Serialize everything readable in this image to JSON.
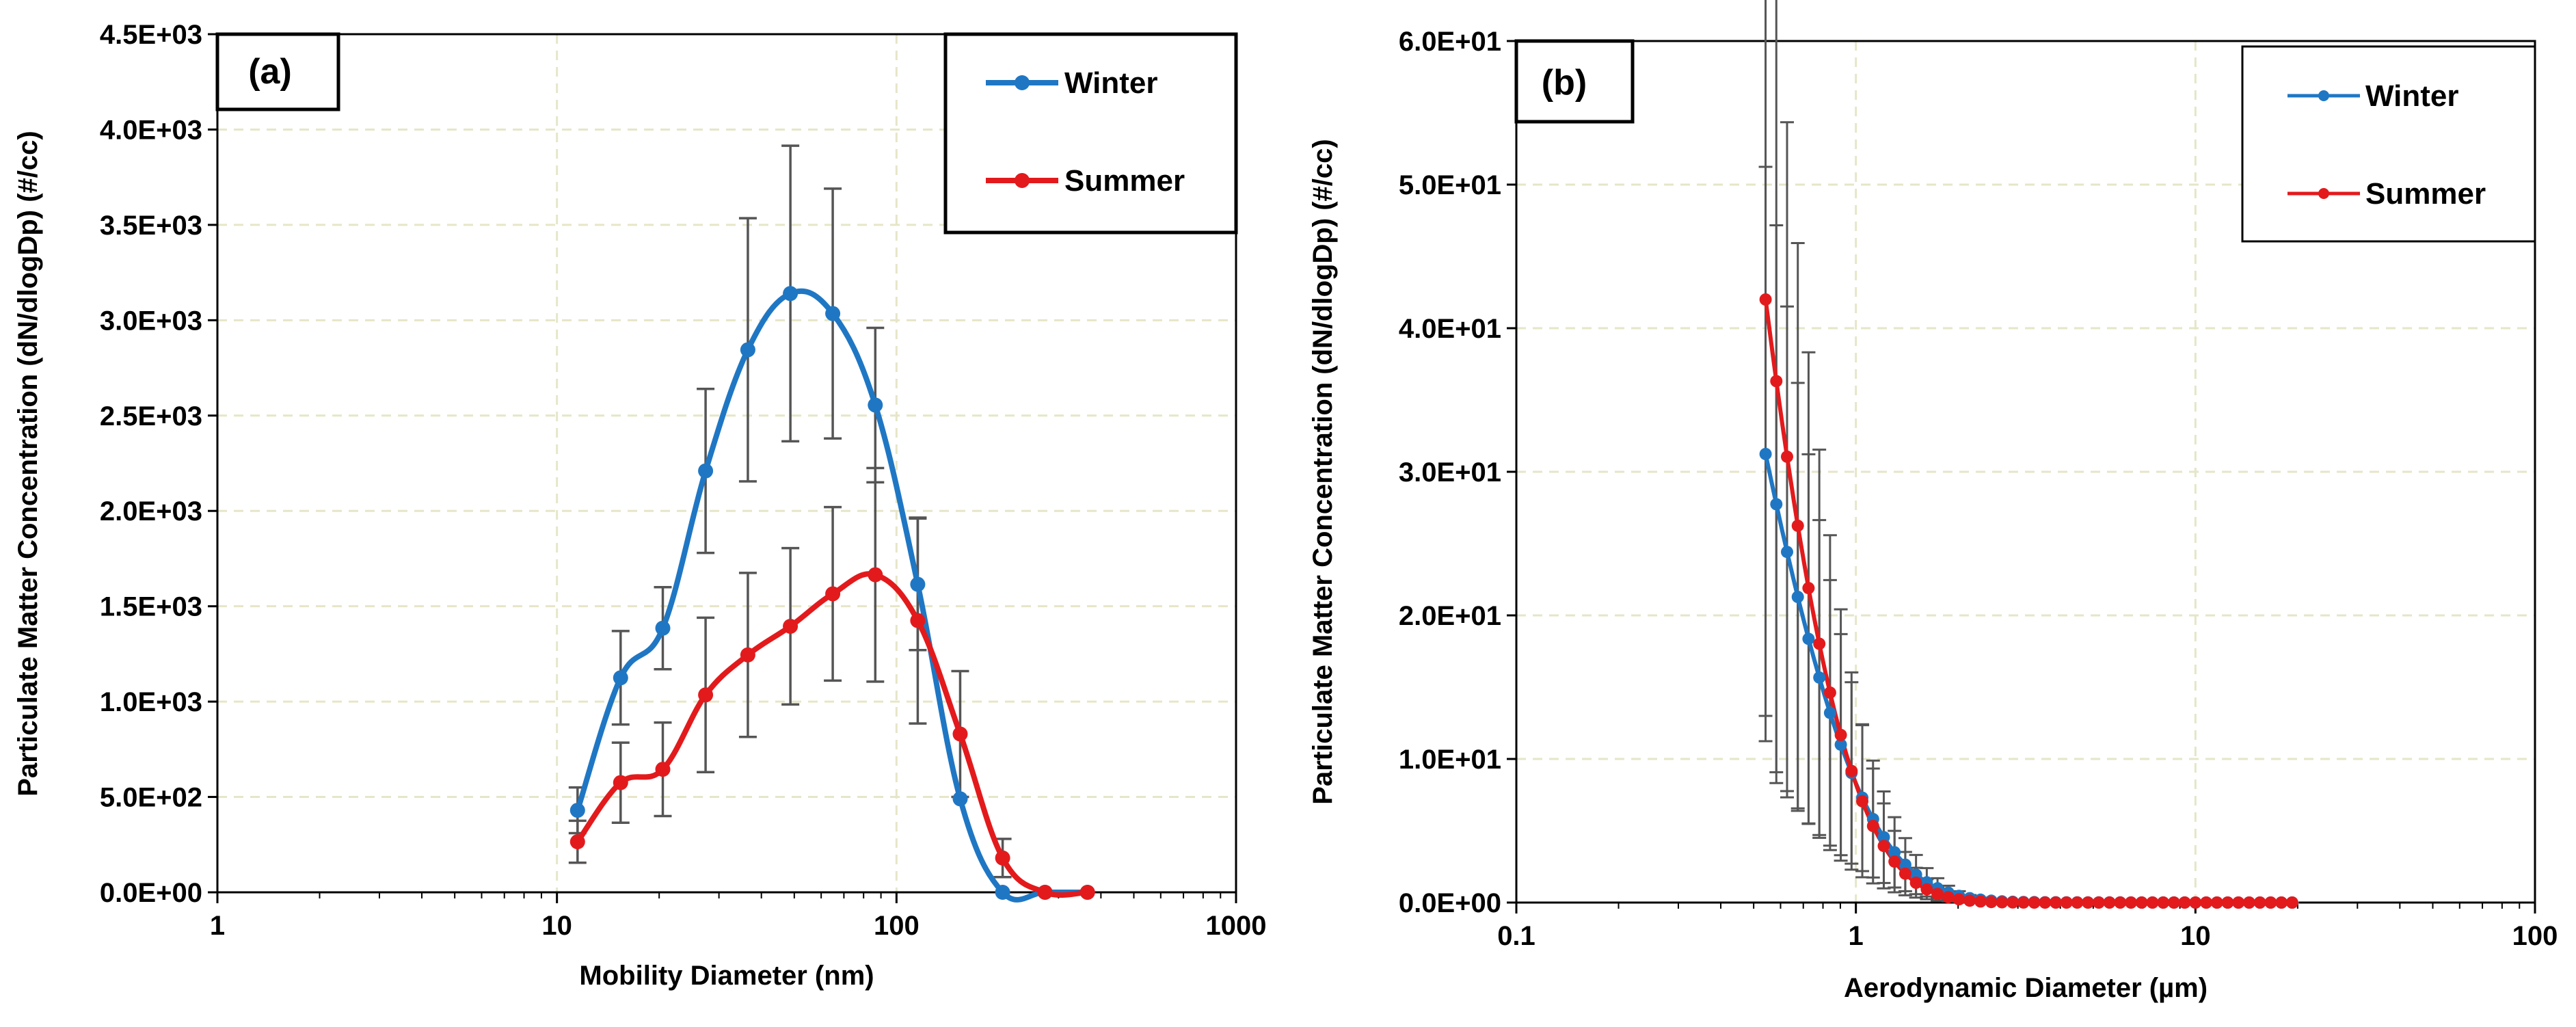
{
  "chart_data": [
    {
      "panel": "(a)",
      "type": "line",
      "xscale": "log",
      "xlim": [
        1,
        1000
      ],
      "ylim": [
        0,
        4500
      ],
      "xlabel": "Mobility Diameter (nm)",
      "ylabel": "Particulate Matter Concentration (dN/dlogDp) (#/cc)",
      "xticks": [
        "1",
        "10",
        "100",
        "1000"
      ],
      "yticks": [
        "0.0E+00",
        "5.0E+02",
        "1.0E+03",
        "1.5E+03",
        "2.0E+03",
        "2.5E+03",
        "3.0E+03",
        "3.5E+03",
        "4.0E+03",
        "4.5E+03"
      ],
      "grid": true,
      "legend_position": "top-right",
      "series": [
        {
          "name": "Winter",
          "color": "#1f77c4",
          "x": [
            11.5,
            15.4,
            20.5,
            27.4,
            36.5,
            48.7,
            64.9,
            86.6,
            115.5,
            154,
            205.4,
            273.8,
            365.2
          ],
          "y": [
            430,
            1125,
            1385,
            2210,
            2845,
            3140,
            3035,
            2555,
            1615,
            490,
            0,
            0,
            0
          ],
          "err": [
            120,
            245,
            215,
            430,
            690,
            775,
            655,
            405,
            345,
            0,
            0,
            0,
            0
          ]
        },
        {
          "name": "Summer",
          "color": "#e31a1c",
          "x": [
            11.5,
            15.4,
            20.5,
            27.4,
            36.5,
            48.7,
            64.9,
            86.6,
            115.5,
            154,
            205.4,
            273.8,
            365.2
          ],
          "y": [
            265,
            575,
            645,
            1035,
            1245,
            1395,
            1565,
            1665,
            1425,
            830,
            180,
            0,
            0
          ],
          "err": [
            110,
            210,
            245,
            405,
            430,
            410,
            455,
            560,
            540,
            330,
            100,
            0,
            0
          ]
        }
      ]
    },
    {
      "panel": "(b)",
      "type": "line",
      "xscale": "log",
      "xlim": [
        0.1,
        100
      ],
      "ylim": [
        0,
        60
      ],
      "xlabel": "Aerodynamic Diameter (µm)",
      "ylabel": "Particulate Matter Concentration (dN/dlogDp) (#/cc)",
      "xticks": [
        "0.1",
        "1",
        "10",
        "100"
      ],
      "yticks": [
        "0.0E+00",
        "1.0E+01",
        "2.0E+01",
        "3.0E+01",
        "4.0E+01",
        "5.0E+01",
        "6.0E+01"
      ],
      "grid": true,
      "legend_position": "top-right",
      "series": [
        {
          "name": "Winter",
          "color": "#1f77c4",
          "x0": 0.542,
          "ratio": 1.0756,
          "n": 50,
          "y_peak": 31.2,
          "decay": 2.9,
          "tail": 0.04,
          "err_start": 20,
          "err_fraction": 0.7
        },
        {
          "name": "Summer",
          "color": "#e31a1c",
          "x0": 0.542,
          "ratio": 1.0756,
          "n": 50,
          "y_peak": 42,
          "decay": 3.55,
          "tail": 0.0,
          "err_start": 29,
          "err_fraction": 0.75
        }
      ]
    }
  ]
}
